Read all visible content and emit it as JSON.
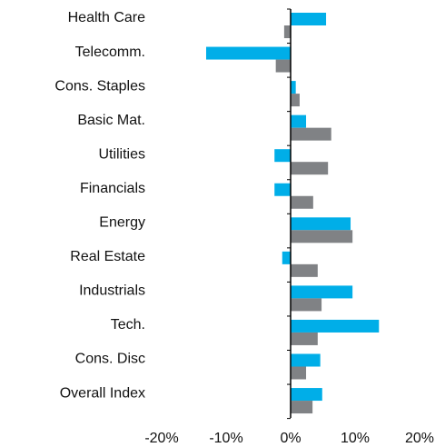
{
  "chart_data": {
    "type": "hbar",
    "categories": [
      "Health Care",
      "Telecomm.",
      "Cons. Staples",
      "Basic Mat.",
      "Utilities",
      "Financials",
      "Energy",
      "Real Estate",
      "Industrials",
      "Tech.",
      "Cons. Disc",
      "Overall Index"
    ],
    "series": [
      {
        "color": "#00aee8",
        "values": [
          5.5,
          -13.1,
          0.8,
          2.4,
          -2.5,
          -2.5,
          9.3,
          -1.3,
          9.6,
          13.7,
          4.6,
          4.9
        ]
      },
      {
        "color": "#808285",
        "values": [
          -1.0,
          -2.3,
          1.4,
          6.3,
          5.8,
          3.5,
          9.6,
          4.2,
          4.8,
          4.2,
          2.4,
          3.4
        ]
      }
    ],
    "xlim": [
      -20,
      20
    ],
    "xticks": [
      {
        "value": -20,
        "label": "-20%"
      },
      {
        "value": -10,
        "label": "-10%"
      },
      {
        "value": 0,
        "label": "0%"
      },
      {
        "value": 10,
        "label": "10%"
      },
      {
        "value": 20,
        "label": "20%"
      }
    ]
  }
}
